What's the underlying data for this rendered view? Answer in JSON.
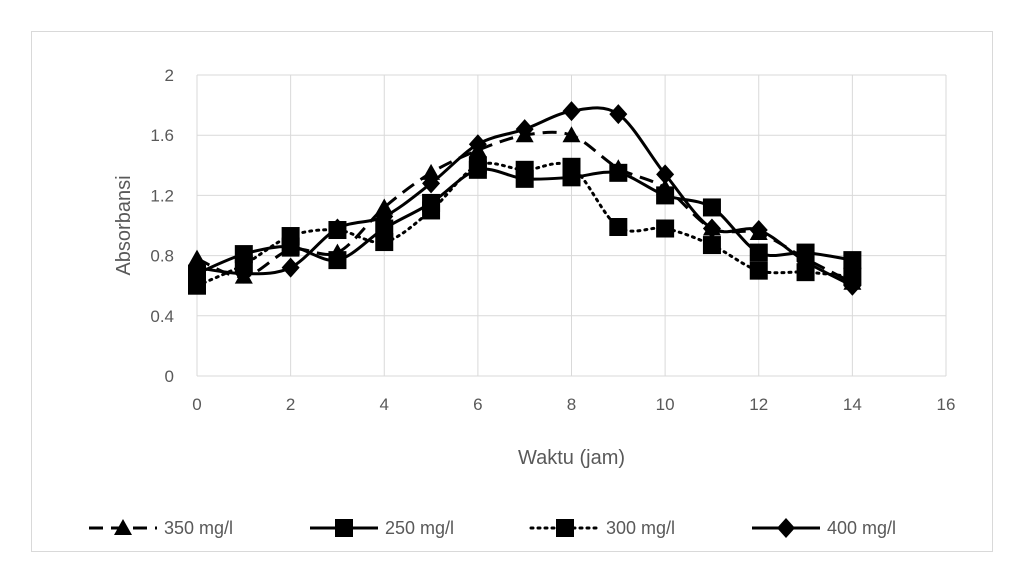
{
  "chart_data": {
    "type": "line",
    "title": "",
    "xlabel": "Waktu (jam)",
    "ylabel": "Absorbansi",
    "xlim": [
      0,
      16
    ],
    "ylim": [
      0,
      2
    ],
    "x_ticks": [
      "0",
      "2",
      "4",
      "6",
      "8",
      "10",
      "12",
      "14",
      "16"
    ],
    "y_ticks": [
      "0",
      "0.4",
      "0.8",
      "1.2",
      "1.6",
      "2"
    ],
    "grid": true,
    "legend_position": "bottom",
    "x": [
      0,
      1,
      2,
      3,
      4,
      5,
      6,
      7,
      8,
      9,
      10,
      11,
      12,
      13,
      14
    ],
    "series": [
      {
        "name": "350 mg/l",
        "line": "dashed",
        "marker": "triangle",
        "color": "#000000",
        "values": [
          0.78,
          0.66,
          0.84,
          0.82,
          1.12,
          1.35,
          1.5,
          1.6,
          1.6,
          1.38,
          1.25,
          0.98,
          0.95,
          0.78,
          0.62
        ]
      },
      {
        "name": "250 mg/l",
        "line": "solid",
        "marker": "square",
        "color": "#000000",
        "values": [
          0.68,
          0.81,
          0.86,
          0.77,
          0.98,
          1.15,
          1.37,
          1.31,
          1.32,
          1.35,
          1.2,
          1.12,
          0.82,
          0.82,
          0.77
        ]
      },
      {
        "name": "300 mg/l",
        "line": "dotted",
        "marker": "square",
        "color": "#000000",
        "values": [
          0.6,
          0.74,
          0.93,
          0.97,
          0.89,
          1.1,
          1.4,
          1.37,
          1.39,
          0.99,
          0.98,
          0.87,
          0.7,
          0.69,
          0.66
        ]
      },
      {
        "name": "400 mg/l",
        "line": "solid",
        "marker": "diamond",
        "color": "#000000",
        "values": [
          0.72,
          0.68,
          0.72,
          0.98,
          1.06,
          1.28,
          1.54,
          1.64,
          1.76,
          1.74,
          1.34,
          0.98,
          0.97,
          0.76,
          0.6
        ]
      }
    ]
  }
}
